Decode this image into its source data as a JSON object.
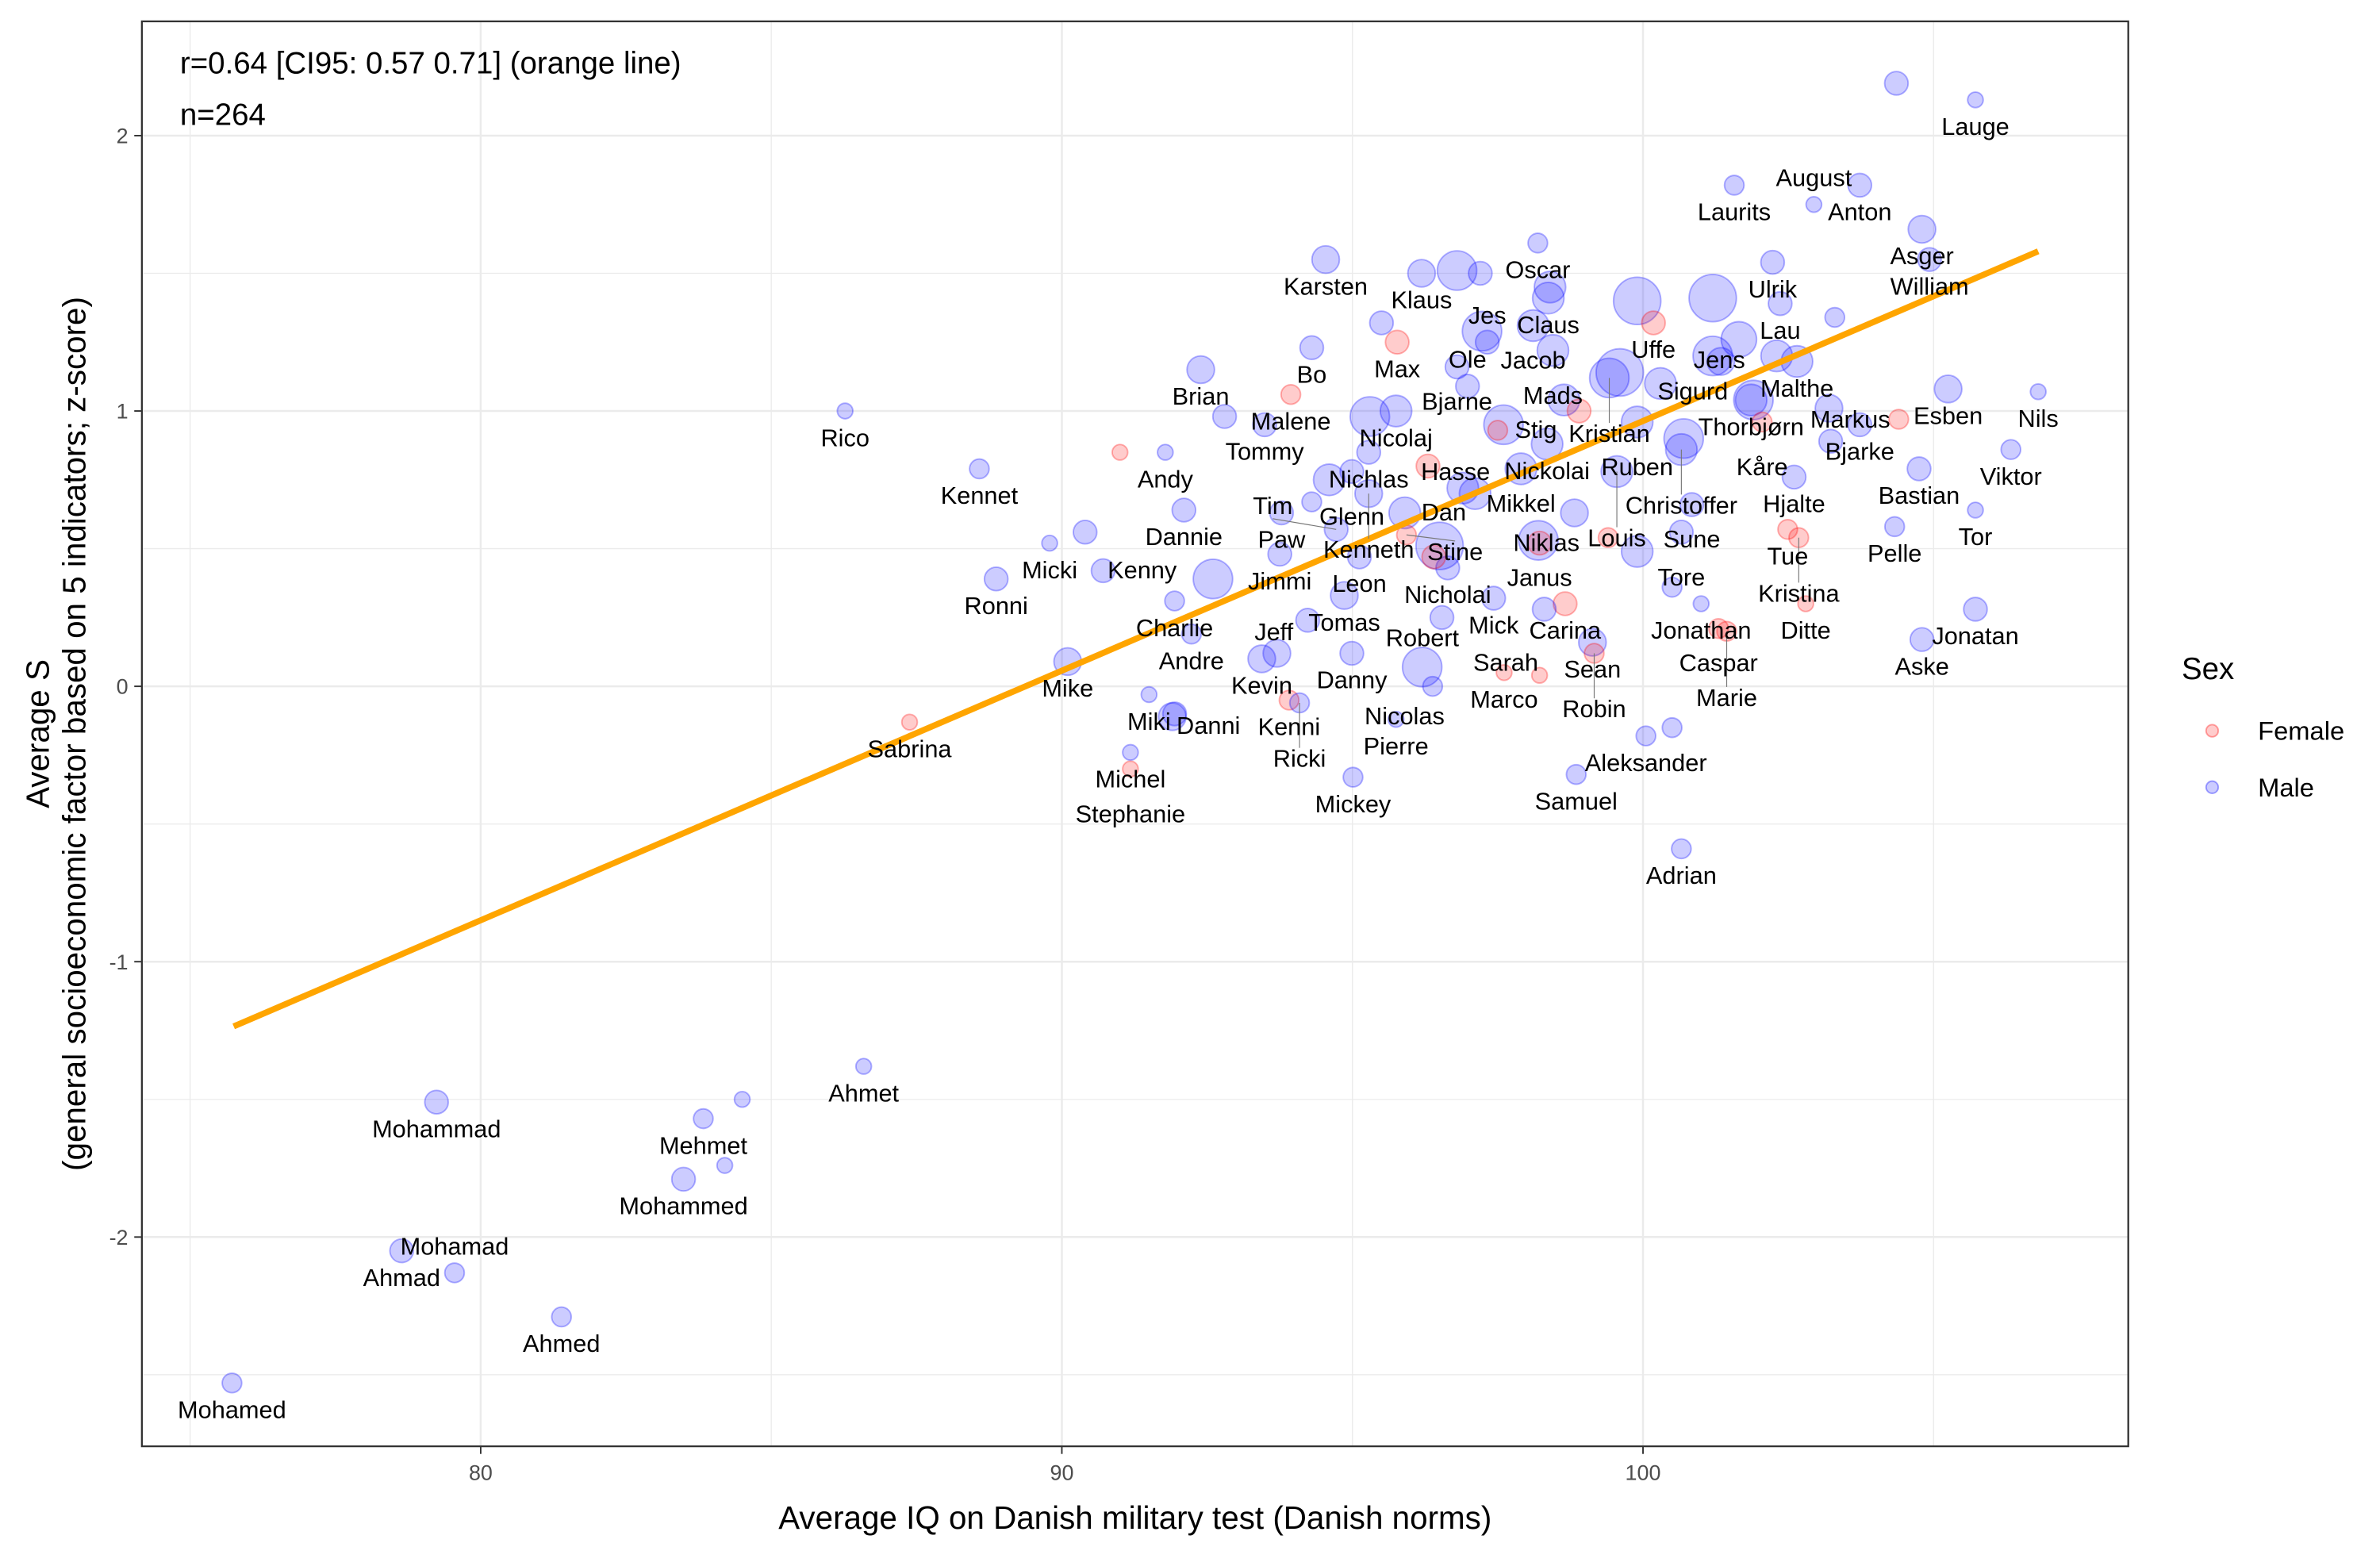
{
  "chart_data": {
    "type": "scatter",
    "title": "",
    "annotations": [
      "r=0.64 [CI95: 0.57 0.71] (orange line)",
      "n=264"
    ],
    "xlabel": "Average IQ on Danish military test (Danish norms)",
    "ylabel": [
      "Average S",
      "(general socioeconomic factor based on 5 indicators; z-score)"
    ],
    "xlim": [
      74.17,
      108.35
    ],
    "ylim": [
      -2.76,
      2.415
    ],
    "xticks": [
      80,
      90,
      100
    ],
    "yticks": [
      -2,
      -1,
      0,
      1,
      2
    ],
    "grid": true,
    "legend": {
      "title": "Sex",
      "placement": "right",
      "entries": [
        "Female",
        "Male"
      ]
    },
    "colors": {
      "Female": "#ff0000",
      "Male": "#0000ff",
      "line": "#ffa500"
    },
    "fit_line": {
      "x": [
        75.75,
        106.8
      ],
      "y": [
        -1.235,
        1.58
      ]
    },
    "points": [
      {
        "label": "Lauge",
        "iq": 105.72,
        "s": 2.13,
        "sex": "Male",
        "size": 1
      },
      {
        "label": "Laurits",
        "iq": 101.57,
        "s": 1.82,
        "sex": "Male",
        "size": 1.5
      },
      {
        "label": "Anton",
        "iq": 103.73,
        "s": 1.82,
        "sex": "Male",
        "size": 2
      },
      {
        "label": "August",
        "iq": 102.94,
        "s": 1.75,
        "sex": "Male",
        "size": 1
      },
      {
        "label": "Asger",
        "iq": 104.8,
        "s": 1.66,
        "sex": "Male",
        "size": 2.5
      },
      {
        "label": "William",
        "iq": 104.93,
        "s": 1.55,
        "sex": "Male",
        "size": 2
      },
      {
        "label": "Karsten",
        "iq": 94.54,
        "s": 1.55,
        "sex": "Male",
        "size": 2.5
      },
      {
        "label": "Oscar",
        "iq": 98.19,
        "s": 1.61,
        "sex": "Male",
        "size": 1.5
      },
      {
        "label": "Klaus",
        "iq": 96.19,
        "s": 1.5,
        "sex": "Male",
        "size": 2.5
      },
      {
        "label": "Ulrik",
        "iq": 102.23,
        "s": 1.54,
        "sex": "Male",
        "size": 2
      },
      {
        "label": "Claus",
        "iq": 98.37,
        "s": 1.41,
        "sex": "Male",
        "size": 3
      },
      {
        "label": "Lau",
        "iq": 102.36,
        "s": 1.39,
        "sex": "Male",
        "size": 2
      },
      {
        "label": "Uffe",
        "iq": 100.18,
        "s": 1.32,
        "sex": "Female",
        "size": 2
      },
      {
        "label": "Jacob",
        "iq": 98.11,
        "s": 1.31,
        "sex": "Male",
        "size": 3
      },
      {
        "label": "Malthe",
        "iq": 102.65,
        "s": 1.18,
        "sex": "Male",
        "size": 3
      },
      {
        "label": "Jens",
        "iq": 101.65,
        "s": 1.26,
        "sex": "Male",
        "size": 3.5
      },
      {
        "label": "Bo",
        "iq": 94.3,
        "s": 1.23,
        "sex": "Male",
        "size": 2
      },
      {
        "label": "Max",
        "iq": 95.77,
        "s": 1.25,
        "sex": "Female",
        "size": 2
      },
      {
        "label": "Jes",
        "iq": 97.32,
        "s": 1.25,
        "sex": "Male",
        "size": 2
      },
      {
        "label": "Mads",
        "iq": 98.45,
        "s": 1.22,
        "sex": "Male",
        "size": 3
      },
      {
        "label": "Sigurd",
        "iq": 101.34,
        "s": 1.18,
        "sex": "Male",
        "size": 2.5
      },
      {
        "label": "Bjarne",
        "iq": 96.8,
        "s": 1.16,
        "sex": "Male",
        "size": 2
      },
      {
        "label": "Brian",
        "iq": 92.39,
        "s": 1.15,
        "sex": "Male",
        "size": 2.5
      },
      {
        "label": "Kristian",
        "iq": 99.42,
        "s": 1.12,
        "sex": "Male",
        "size": 4
      },
      {
        "label": "Esben",
        "iq": 105.25,
        "s": 1.08,
        "sex": "Male",
        "size": 2.5
      },
      {
        "label": "Nils",
        "iq": 106.8,
        "s": 1.07,
        "sex": "Male",
        "size": 1
      },
      {
        "label": "Ole",
        "iq": 96.98,
        "s": 1.09,
        "sex": "Male",
        "size": 2
      },
      {
        "label": "Rico",
        "iq": 86.27,
        "s": 1.0,
        "sex": "Male",
        "size": 1
      },
      {
        "label": "Thorbjørn",
        "iq": 101.86,
        "s": 1.04,
        "sex": "Male",
        "size": 3
      },
      {
        "label": "Malene",
        "iq": 93.94,
        "s": 1.06,
        "sex": "Female",
        "size": 1.5
      },
      {
        "label": "Stig",
        "iq": 98.64,
        "s": 1.04,
        "sex": "Male",
        "size": 3
      },
      {
        "label": "Nicolaj",
        "iq": 95.75,
        "s": 1.0,
        "sex": "Male",
        "size": 3
      },
      {
        "label": "Ruben",
        "iq": 99.9,
        "s": 0.96,
        "sex": "Male",
        "size": 3
      },
      {
        "label": "Kåre",
        "iq": 102.05,
        "s": 0.96,
        "sex": "Female",
        "size": 1.5
      },
      {
        "label": "Bjarke",
        "iq": 103.73,
        "s": 0.95,
        "sex": "Male",
        "size": 2
      },
      {
        "label": "Tommy",
        "iq": 93.49,
        "s": 0.95,
        "sex": "Male",
        "size": 2
      },
      {
        "label": "Markus",
        "iq": 103.23,
        "s": 0.89,
        "sex": "Male",
        "size": 2
      },
      {
        "label": "Nickolai",
        "iq": 98.35,
        "s": 0.88,
        "sex": "Male",
        "size": 3
      },
      {
        "label": "Nichlas",
        "iq": 95.28,
        "s": 0.85,
        "sex": "Male",
        "size": 2
      },
      {
        "label": "Christoffer",
        "iq": 100.66,
        "s": 0.86,
        "sex": "Male",
        "size": 3
      },
      {
        "label": "Viktor",
        "iq": 106.33,
        "s": 0.86,
        "sex": "Male",
        "size": 1.5
      },
      {
        "label": "Andy",
        "iq": 91.78,
        "s": 0.85,
        "sex": "Male",
        "size": 1
      },
      {
        "label": "Kennet",
        "iq": 88.58,
        "s": 0.79,
        "sex": "Male",
        "size": 1.5
      },
      {
        "label": "Mikkel",
        "iq": 97.9,
        "s": 0.79,
        "sex": "Male",
        "size": 3
      },
      {
        "label": "Louis",
        "iq": 99.55,
        "s": 0.78,
        "sex": "Male",
        "size": 3
      },
      {
        "label": "Glenn",
        "iq": 94.99,
        "s": 0.78,
        "sex": "Male",
        "size": 2
      },
      {
        "label": "Bastian",
        "iq": 104.75,
        "s": 0.79,
        "sex": "Male",
        "size": 2
      },
      {
        "label": "Hjalte",
        "iq": 102.6,
        "s": 0.76,
        "sex": "Male",
        "size": 2
      },
      {
        "label": "Kenneth",
        "iq": 95.28,
        "s": 0.7,
        "sex": "Male",
        "size": 2.5
      },
      {
        "label": "Hasse",
        "iq": 97.11,
        "s": 0.7,
        "sex": "Male",
        "size": 3
      },
      {
        "label": "Tue",
        "iq": 102.49,
        "s": 0.57,
        "sex": "Female",
        "size": 1.5
      },
      {
        "label": "Sune",
        "iq": 100.84,
        "s": 0.66,
        "sex": "Male",
        "size": 2
      },
      {
        "label": "Dannie",
        "iq": 92.1,
        "s": 0.64,
        "sex": "Male",
        "size": 2
      },
      {
        "label": "Paw",
        "iq": 93.78,
        "s": 0.63,
        "sex": "Male",
        "size": 2
      },
      {
        "label": "Dan",
        "iq": 95.9,
        "s": 0.63,
        "sex": "Male",
        "size": 3
      },
      {
        "label": "Niklas",
        "iq": 98.82,
        "s": 0.63,
        "sex": "Male",
        "size": 2.5
      },
      {
        "label": "Tor",
        "iq": 105.72,
        "s": 0.64,
        "sex": "Male",
        "size": 1
      },
      {
        "label": "Pelle",
        "iq": 104.33,
        "s": 0.58,
        "sex": "Male",
        "size": 1.5
      },
      {
        "label": "Stine",
        "iq": 95.93,
        "s": 0.55,
        "sex": "Female",
        "size": 1.5
      },
      {
        "label": "Tim",
        "iq": 94.72,
        "s": 0.57,
        "sex": "Male",
        "size": 2
      },
      {
        "label": "Tore",
        "iq": 100.66,
        "s": 0.56,
        "sex": "Male",
        "size": 2
      },
      {
        "label": "Kristina",
        "iq": 102.68,
        "s": 0.54,
        "sex": "Female",
        "size": 1.5
      },
      {
        "label": "Micki",
        "iq": 89.79,
        "s": 0.52,
        "sex": "Male",
        "size": 1
      },
      {
        "label": "Janus",
        "iq": 98.22,
        "s": 0.52,
        "sex": "Female",
        "size": 2
      },
      {
        "label": "Jimmi",
        "iq": 93.75,
        "s": 0.48,
        "sex": "Male",
        "size": 2
      },
      {
        "label": "Leon",
        "iq": 95.12,
        "s": 0.47,
        "sex": "Male",
        "size": 2
      },
      {
        "label": "Nicholai",
        "iq": 96.64,
        "s": 0.43,
        "sex": "Male",
        "size": 2
      },
      {
        "label": "Carina",
        "iq": 98.66,
        "s": 0.3,
        "sex": "Female",
        "size": 2
      },
      {
        "label": "Jonathan",
        "iq": 101.0,
        "s": 0.3,
        "sex": "Male",
        "size": 1
      },
      {
        "label": "Kenny",
        "iq": 90.71,
        "s": 0.42,
        "sex": "Male",
        "size": 2
      },
      {
        "label": "Ronni",
        "iq": 88.87,
        "s": 0.39,
        "sex": "Male",
        "size": 2
      },
      {
        "label": "Tomas",
        "iq": 94.86,
        "s": 0.33,
        "sex": "Male",
        "size": 2.5
      },
      {
        "label": "Mick",
        "iq": 97.43,
        "s": 0.32,
        "sex": "Male",
        "size": 2
      },
      {
        "label": "Charlie",
        "iq": 91.94,
        "s": 0.31,
        "sex": "Male",
        "size": 1.5
      },
      {
        "label": "Caspar",
        "iq": 101.3,
        "s": 0.21,
        "sex": "Female",
        "size": 1.5
      },
      {
        "label": "Ditte",
        "iq": 102.8,
        "s": 0.3,
        "sex": "Female",
        "size": 1
      },
      {
        "label": "Jonatan",
        "iq": 105.72,
        "s": 0.28,
        "sex": "Male",
        "size": 2
      },
      {
        "label": "Sean",
        "iq": 99.13,
        "s": 0.16,
        "sex": "Male",
        "size": 2.5
      },
      {
        "label": "Jeff",
        "iq": 94.23,
        "s": 0.24,
        "sex": "Male",
        "size": 2
      },
      {
        "label": "Robert",
        "iq": 96.54,
        "s": 0.25,
        "sex": "Male",
        "size": 2
      },
      {
        "label": "Marie",
        "iq": 101.44,
        "s": 0.2,
        "sex": "Female",
        "size": 1.5
      },
      {
        "label": "Andre",
        "iq": 92.23,
        "s": 0.19,
        "sex": "Male",
        "size": 1.5
      },
      {
        "label": "Aske",
        "iq": 104.8,
        "s": 0.17,
        "sex": "Male",
        "size": 2
      },
      {
        "label": "Marco",
        "iq": 97.61,
        "s": 0.05,
        "sex": "Female",
        "size": 1
      },
      {
        "label": "Robin",
        "iq": 99.16,
        "s": 0.12,
        "sex": "Female",
        "size": 1.5
      },
      {
        "label": "Kevin",
        "iq": 93.44,
        "s": 0.1,
        "sex": "Male",
        "size": 2.5
      },
      {
        "label": "Danny",
        "iq": 94.99,
        "s": 0.12,
        "sex": "Male",
        "size": 2
      },
      {
        "label": "Mike",
        "iq": 90.1,
        "s": 0.09,
        "sex": "Male",
        "size": 2.5
      },
      {
        "label": "Sarah",
        "iq": 98.22,
        "s": 0.04,
        "sex": "Female",
        "size": 1
      },
      {
        "label": "Kenni",
        "iq": 93.91,
        "s": -0.05,
        "sex": "Female",
        "size": 1.5
      },
      {
        "label": "Nicolas",
        "iq": 96.38,
        "s": 0.0,
        "sex": "Male",
        "size": 1.5
      },
      {
        "label": "Miki",
        "iq": 91.5,
        "s": -0.03,
        "sex": "Male",
        "size": 1
      },
      {
        "label": "Ricki",
        "iq": 94.09,
        "s": -0.06,
        "sex": "Male",
        "size": 1.5
      },
      {
        "label": "Danni",
        "iq": 91.94,
        "s": -0.1,
        "sex": "Male",
        "size": 2
      },
      {
        "label": "Sabrina",
        "iq": 87.38,
        "s": -0.13,
        "sex": "Female",
        "size": 1
      },
      {
        "label": "Pierre",
        "iq": 95.75,
        "s": -0.12,
        "sex": "Male",
        "size": 1
      },
      {
        "label": "Aleksander",
        "iq": 100.05,
        "s": -0.18,
        "sex": "Male",
        "size": 1.5
      },
      {
        "label": "Michel",
        "iq": 91.18,
        "s": -0.24,
        "sex": "Male",
        "size": 1
      },
      {
        "label": "Stephanie",
        "iq": 91.18,
        "s": -0.3,
        "sex": "Female",
        "size": 1
      },
      {
        "label": "Mickey",
        "iq": 95.01,
        "s": -0.33,
        "sex": "Male",
        "size": 1.5
      },
      {
        "label": "Samuel",
        "iq": 98.85,
        "s": -0.32,
        "sex": "Male",
        "size": 1.5
      },
      {
        "label": "Adrian",
        "iq": 100.66,
        "s": -0.59,
        "sex": "Male",
        "size": 1.5
      },
      {
        "label": "Ahmet",
        "iq": 86.59,
        "s": -1.38,
        "sex": "Male",
        "size": 1
      },
      {
        "label": "Mohammad",
        "iq": 79.24,
        "s": -1.51,
        "sex": "Male",
        "size": 2
      },
      {
        "label": "Mehmet",
        "iq": 83.83,
        "s": -1.57,
        "sex": "Male",
        "size": 1.5
      },
      {
        "label": "Mohammed",
        "iq": 83.49,
        "s": -1.79,
        "sex": "Male",
        "size": 2
      },
      {
        "label": "Ahmad",
        "iq": 78.64,
        "s": -2.05,
        "sex": "Male",
        "size": 2
      },
      {
        "label": "Mohamad",
        "iq": 79.55,
        "s": -2.13,
        "sex": "Male",
        "size": 1.5
      },
      {
        "label": "Ahmed",
        "iq": 81.39,
        "s": -2.29,
        "sex": "Male",
        "size": 1.5
      },
      {
        "label": "Mohamed",
        "iq": 75.72,
        "s": -2.53,
        "sex": "Male",
        "size": 1.5
      },
      {
        "label": "",
        "iq": 104.36,
        "s": 2.19,
        "sex": "Male",
        "size": 2
      },
      {
        "label": "",
        "iq": 84.2,
        "s": -1.74,
        "sex": "Male",
        "size": 1
      },
      {
        "label": "",
        "iq": 84.5,
        "s": -1.5,
        "sex": "Male",
        "size": 1
      },
      {
        "label": "",
        "iq": 99.9,
        "s": 1.4,
        "sex": "Male",
        "size": 5
      },
      {
        "label": "",
        "iq": 96.8,
        "s": 1.51,
        "sex": "Male",
        "size": 4
      },
      {
        "label": "",
        "iq": 97.23,
        "s": 1.29,
        "sex": "Male",
        "size": 4
      },
      {
        "label": "",
        "iq": 101.2,
        "s": 1.41,
        "sex": "Male",
        "size": 5
      },
      {
        "label": "",
        "iq": 99.6,
        "s": 1.14,
        "sex": "Male",
        "size": 5
      },
      {
        "label": "",
        "iq": 98.2,
        "s": 0.53,
        "sex": "Male",
        "size": 4
      },
      {
        "label": "",
        "iq": 96.2,
        "s": 0.07,
        "sex": "Male",
        "size": 4
      },
      {
        "label": "",
        "iq": 96.5,
        "s": 0.51,
        "sex": "Male",
        "size": 5
      },
      {
        "label": "",
        "iq": 95.3,
        "s": 0.98,
        "sex": "Male",
        "size": 4
      },
      {
        "label": "",
        "iq": 92.6,
        "s": 0.39,
        "sex": "Male",
        "size": 4
      },
      {
        "label": "",
        "iq": 99.9,
        "s": 0.49,
        "sex": "Male",
        "size": 3
      },
      {
        "label": "",
        "iq": 101.9,
        "s": 1.04,
        "sex": "Male",
        "size": 4
      },
      {
        "label": "",
        "iq": 98.4,
        "s": 1.45,
        "sex": "Male",
        "size": 3
      },
      {
        "label": "",
        "iq": 101.2,
        "s": 1.2,
        "sex": "Male",
        "size": 4
      },
      {
        "label": "",
        "iq": 100.3,
        "s": 1.1,
        "sex": "Male",
        "size": 3
      },
      {
        "label": "",
        "iq": 100.7,
        "s": 0.9,
        "sex": "Male",
        "size": 4
      },
      {
        "label": "",
        "iq": 97.6,
        "s": 0.95,
        "sex": "Male",
        "size": 4
      },
      {
        "label": "",
        "iq": 96.9,
        "s": 0.72,
        "sex": "Male",
        "size": 3
      },
      {
        "label": "",
        "iq": 94.6,
        "s": 0.75,
        "sex": "Male",
        "size": 3
      },
      {
        "label": "",
        "iq": 93.7,
        "s": 0.12,
        "sex": "Male",
        "size": 2.5
      },
      {
        "label": "",
        "iq": 91.9,
        "s": -0.11,
        "sex": "Male",
        "size": 2.5
      },
      {
        "label": "",
        "iq": 100.5,
        "s": -0.15,
        "sex": "Male",
        "size": 1.5
      },
      {
        "label": "",
        "iq": 100.5,
        "s": 0.36,
        "sex": "Male",
        "size": 1.5
      },
      {
        "label": "",
        "iq": 103.2,
        "s": 1.01,
        "sex": "Male",
        "size": 2.5
      },
      {
        "label": "",
        "iq": 104.4,
        "s": 0.97,
        "sex": "Female",
        "size": 1.5
      },
      {
        "label": "",
        "iq": 91.0,
        "s": 0.85,
        "sex": "Female",
        "size": 1
      },
      {
        "label": "",
        "iq": 96.3,
        "s": 0.8,
        "sex": "Female",
        "size": 2
      },
      {
        "label": "",
        "iq": 96.4,
        "s": 0.47,
        "sex": "Female",
        "size": 2
      },
      {
        "label": "",
        "iq": 97.5,
        "s": 0.93,
        "sex": "Female",
        "size": 1.5
      },
      {
        "label": "",
        "iq": 99.4,
        "s": 0.54,
        "sex": "Female",
        "size": 1.5
      },
      {
        "label": "",
        "iq": 98.9,
        "s": 1.0,
        "sex": "Female",
        "size": 2
      },
      {
        "label": "",
        "iq": 97.2,
        "s": 1.5,
        "sex": "Male",
        "size": 2
      },
      {
        "label": "",
        "iq": 98.3,
        "s": 0.28,
        "sex": "Male",
        "size": 2
      },
      {
        "label": "",
        "iq": 95.5,
        "s": 1.32,
        "sex": "Male",
        "size": 2
      },
      {
        "label": "",
        "iq": 90.4,
        "s": 0.56,
        "sex": "Male",
        "size": 2
      },
      {
        "label": "",
        "iq": 92.8,
        "s": 0.98,
        "sex": "Male",
        "size": 2
      },
      {
        "label": "",
        "iq": 94.3,
        "s": 0.67,
        "sex": "Male",
        "size": 1.5
      },
      {
        "label": "",
        "iq": 103.3,
        "s": 1.34,
        "sex": "Male",
        "size": 1.5
      },
      {
        "label": "",
        "iq": 102.3,
        "s": 1.2,
        "sex": "Male",
        "size": 3
      }
    ]
  }
}
